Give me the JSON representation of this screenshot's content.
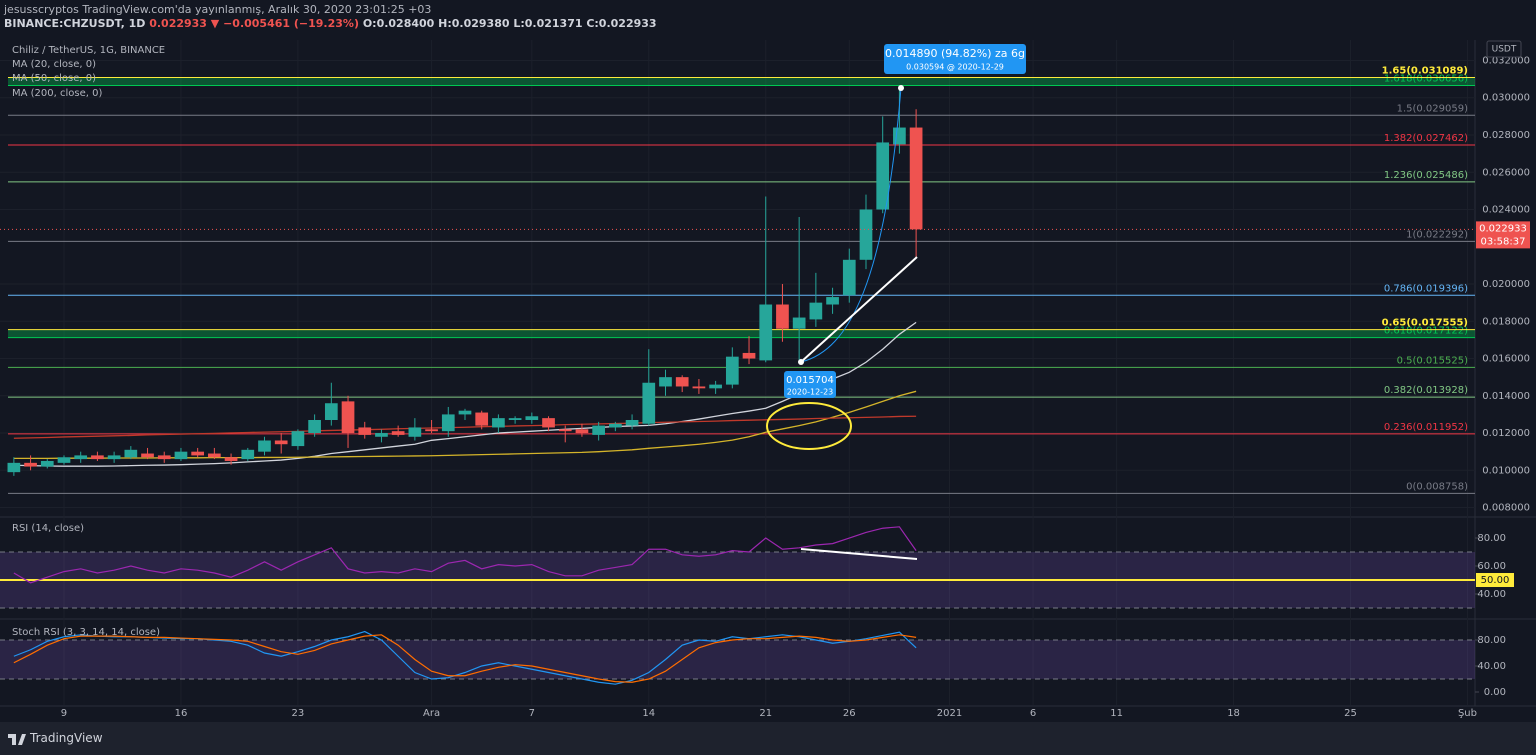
{
  "header": {
    "line1": "jesusscryptos TradingView.com'da yayınlanmış, Aralık 30, 2020 23:01:25 +03",
    "symbol": "BINANCE:CHZUSDT, 1D",
    "change": "0.022933 ▼ −0.005461 (−19.23%)",
    "ohlc": "O:0.028400 H:0.029380 L:0.021371 C:0.022933",
    "currency": "USDT",
    "footer": "TradingView"
  },
  "chart_data": [
    {
      "type": "candlestick",
      "title": "Chiliz / TetherUS, 1G, BINANCE",
      "up_color": "#26a69a",
      "down_color": "#ef5350",
      "open": [
        0.0099,
        0.0104,
        0.0102,
        0.0104,
        0.0106,
        0.0108,
        0.0106,
        0.0107,
        0.0109,
        0.0108,
        0.0106,
        0.011,
        0.0109,
        0.0107,
        0.0106,
        0.011,
        0.0116,
        0.0113,
        0.012,
        0.0127,
        0.0137,
        0.0123,
        0.0118,
        0.0121,
        0.0118,
        0.0122,
        0.0121,
        0.013,
        0.0131,
        0.0123,
        0.0127,
        0.0127,
        0.0128,
        0.0122,
        0.0122,
        0.0119,
        0.0123,
        0.0124,
        0.0125,
        0.0145,
        0.015,
        0.0145,
        0.0144,
        0.0146,
        0.0163,
        0.0159,
        0.0189,
        0.0176,
        0.0181,
        0.0189,
        0.0194,
        0.0213,
        0.024,
        0.0275,
        0.0284
      ],
      "high": [
        0.0107,
        0.0108,
        0.0106,
        0.0108,
        0.011,
        0.011,
        0.011,
        0.0113,
        0.0112,
        0.011,
        0.0112,
        0.0112,
        0.0112,
        0.0109,
        0.0112,
        0.0118,
        0.012,
        0.0122,
        0.013,
        0.0147,
        0.014,
        0.0126,
        0.0122,
        0.0124,
        0.0128,
        0.0127,
        0.0134,
        0.0133,
        0.0132,
        0.013,
        0.0129,
        0.0131,
        0.0129,
        0.0124,
        0.0125,
        0.0126,
        0.0126,
        0.013,
        0.0165,
        0.0154,
        0.0151,
        0.0149,
        0.0148,
        0.0166,
        0.0172,
        0.0247,
        0.02,
        0.0236,
        0.0206,
        0.0198,
        0.0219,
        0.0248,
        0.029,
        0.0306,
        0.02938
      ],
      "low": [
        0.0097,
        0.01,
        0.0101,
        0.0103,
        0.0104,
        0.0105,
        0.0104,
        0.0106,
        0.0106,
        0.0104,
        0.0105,
        0.0107,
        0.0106,
        0.0103,
        0.0105,
        0.0108,
        0.0109,
        0.0111,
        0.0118,
        0.0124,
        0.0112,
        0.0117,
        0.0115,
        0.0118,
        0.0116,
        0.012,
        0.0118,
        0.0127,
        0.0122,
        0.012,
        0.0125,
        0.0125,
        0.0121,
        0.0115,
        0.0118,
        0.0116,
        0.0121,
        0.0122,
        0.0124,
        0.014,
        0.0142,
        0.0141,
        0.0141,
        0.0144,
        0.0157,
        0.0158,
        0.0169,
        0.0159,
        0.0177,
        0.0184,
        0.019,
        0.0208,
        0.0238,
        0.027,
        0.021371
      ],
      "close": [
        0.0104,
        0.0102,
        0.0105,
        0.0107,
        0.0108,
        0.0106,
        0.0108,
        0.0111,
        0.0107,
        0.0106,
        0.011,
        0.0108,
        0.0107,
        0.0105,
        0.0111,
        0.0116,
        0.0114,
        0.0121,
        0.0127,
        0.0136,
        0.012,
        0.0119,
        0.012,
        0.0119,
        0.0123,
        0.0121,
        0.013,
        0.0132,
        0.0124,
        0.0128,
        0.0128,
        0.0129,
        0.0123,
        0.0121,
        0.012,
        0.0124,
        0.0125,
        0.0127,
        0.0147,
        0.015,
        0.0145,
        0.0144,
        0.0146,
        0.0161,
        0.016,
        0.0189,
        0.0176,
        0.0182,
        0.019,
        0.0193,
        0.0213,
        0.024,
        0.0276,
        0.0284,
        0.022933
      ],
      "series": [
        {
          "name": "MA (20, close, 0)",
          "color": "#d1d4dc",
          "values": [
            0.01027,
            0.01025,
            0.01023,
            0.01022,
            0.01022,
            0.01022,
            0.01023,
            0.01025,
            0.01027,
            0.01028,
            0.0103,
            0.01033,
            0.01036,
            0.0104,
            0.01045,
            0.0105,
            0.01055,
            0.01064,
            0.01075,
            0.0109,
            0.011,
            0.0111,
            0.0112,
            0.0113,
            0.0114,
            0.01161,
            0.0117,
            0.0118,
            0.0119,
            0.012,
            0.01205,
            0.0121,
            0.01215,
            0.0122,
            0.01225,
            0.0123,
            0.01235,
            0.01238,
            0.01241,
            0.0125,
            0.01262,
            0.01275,
            0.0129,
            0.01305,
            0.01318,
            0.01333,
            0.0137,
            0.0141,
            0.0145,
            0.0149,
            0.01526,
            0.0158,
            0.0165,
            0.0173,
            0.01794
          ]
        },
        {
          "name": "MA (50, close, 0)",
          "color": "#d4b42a",
          "values": [
            0.01064,
            0.01064,
            0.01064,
            0.01065,
            0.01065,
            0.01065,
            0.01066,
            0.01066,
            0.01066,
            0.01067,
            0.01067,
            0.01067,
            0.01068,
            0.01068,
            0.01068,
            0.01069,
            0.01069,
            0.0107,
            0.01071,
            0.01072,
            0.01073,
            0.01074,
            0.01075,
            0.01076,
            0.01077,
            0.01078,
            0.0108,
            0.01082,
            0.01084,
            0.01086,
            0.01088,
            0.0109,
            0.01092,
            0.01094,
            0.01096,
            0.011,
            0.01105,
            0.0111,
            0.01118,
            0.01125,
            0.01132,
            0.0114,
            0.0115,
            0.01162,
            0.0118,
            0.01204,
            0.01222,
            0.0124,
            0.0126,
            0.01285,
            0.01311,
            0.0134,
            0.0137,
            0.014,
            0.01424
          ]
        },
        {
          "name": "MA (200, close, 0)",
          "color": "#c0392b",
          "values": [
            0.01172,
            0.01174,
            0.01176,
            0.01179,
            0.01181,
            0.01183,
            0.01185,
            0.01187,
            0.0119,
            0.01192,
            0.01194,
            0.01196,
            0.01198,
            0.01201,
            0.01203,
            0.01205,
            0.01207,
            0.01209,
            0.01212,
            0.01214,
            0.01216,
            0.01218,
            0.0122,
            0.01223,
            0.01225,
            0.01227,
            0.01229,
            0.01231,
            0.01234,
            0.01236,
            0.01238,
            0.0124,
            0.01242,
            0.01245,
            0.01247,
            0.01249,
            0.01251,
            0.01253,
            0.01256,
            0.01258,
            0.0126,
            0.01262,
            0.01264,
            0.01267,
            0.01269,
            0.01271,
            0.01273,
            0.01275,
            0.01278,
            0.0128,
            0.01282,
            0.01284,
            0.01286,
            0.01289,
            0.0129
          ]
        }
      ],
      "fib_levels": [
        {
          "value": 0.008758,
          "label": "0(0.008758)",
          "color": "#787b86"
        },
        {
          "value": 0.011952,
          "label": "0.236(0.011952)",
          "color": "#f23645"
        },
        {
          "value": 0.013928,
          "label": "0.382(0.013928)",
          "color": "#81c784"
        },
        {
          "value": 0.015525,
          "label": "0.5(0.015525)",
          "color": "#4caf50"
        },
        {
          "value": 0.017122,
          "label": "0.618(0.017122)",
          "color": "#00c853"
        },
        {
          "value": 0.017555,
          "label": "0.65(0.017555)",
          "color": "#ffeb3b"
        },
        {
          "value": 0.019396,
          "label": "0.786(0.019396)",
          "color": "#64b5f6"
        },
        {
          "value": 0.022292,
          "label": "1(0.022292)",
          "color": "#787b86"
        },
        {
          "value": 0.025486,
          "label": "1.236(0.025486)",
          "color": "#81c784"
        },
        {
          "value": 0.027462,
          "label": "1.382(0.027462)",
          "color": "#f23645"
        },
        {
          "value": 0.029059,
          "label": "1.5(0.029059)",
          "color": "#787b86"
        },
        {
          "value": 0.030656,
          "label": "1.618(0.030656)",
          "color": "#00c853"
        },
        {
          "value": 0.031089,
          "label": "1.65(0.031089)",
          "color": "#ffeb3b"
        }
      ],
      "last_price": 0.022933,
      "countdown": "03:58:37",
      "measure": {
        "label": "0.014890 (94.82%) za 6g",
        "sub": "0.030594 @ 2020-12-29"
      },
      "point": {
        "label": "0.015704",
        "sub": "2020-12-23"
      },
      "ylim": [
        0.0076,
        0.0331
      ],
      "yticks": [
        {
          "value": 0.032,
          "label": "0.032000"
        },
        {
          "value": 0.03,
          "label": "0.030000"
        },
        {
          "value": 0.028,
          "label": "0.028000"
        },
        {
          "value": 0.026,
          "label": "0.026000"
        },
        {
          "value": 0.024,
          "label": "0.024000"
        },
        {
          "value": 0.02,
          "label": "0.020000"
        },
        {
          "value": 0.018,
          "label": "0.018000"
        },
        {
          "value": 0.016,
          "label": "0.016000"
        },
        {
          "value": 0.014,
          "label": "0.014000"
        },
        {
          "value": 0.012,
          "label": "0.012000"
        },
        {
          "value": 0.01,
          "label": "0.010000"
        },
        {
          "value": 0.008,
          "label": "0.008000"
        }
      ],
      "xlim": [
        -0.83,
        87.45
      ],
      "xticks": [
        {
          "value": 3,
          "label": "9"
        },
        {
          "value": 10,
          "label": "16"
        },
        {
          "value": 17,
          "label": "23"
        },
        {
          "value": 25,
          "label": "Ara"
        },
        {
          "value": 31,
          "label": "7"
        },
        {
          "value": 38,
          "label": "14"
        },
        {
          "value": 45,
          "label": "21"
        },
        {
          "value": 50,
          "label": "26"
        },
        {
          "value": 56,
          "label": "2021"
        },
        {
          "value": 61,
          "label": "6"
        },
        {
          "value": 66,
          "label": "11"
        },
        {
          "value": 73,
          "label": "18"
        },
        {
          "value": 80,
          "label": "25"
        },
        {
          "value": 87,
          "label": "Şub"
        }
      ]
    },
    {
      "type": "line",
      "title": "RSI (14, close)",
      "series": [
        {
          "color": "#9c27b0",
          "values": [
            55,
            48,
            52,
            56,
            58,
            55,
            57,
            60,
            57,
            55,
            58,
            57,
            55,
            52,
            57,
            63,
            57,
            63,
            68,
            73,
            58,
            55,
            56,
            55,
            58,
            56,
            62,
            64,
            58,
            61,
            60,
            61,
            56,
            53,
            53,
            57,
            59,
            61,
            72,
            72,
            68,
            67,
            68,
            71,
            70,
            80,
            72,
            73,
            75,
            76,
            80,
            84,
            87,
            88,
            71
          ]
        }
      ],
      "ylim": [
        25,
        94.3
      ],
      "yticks": [
        {
          "value": 80,
          "label": "80.00"
        },
        {
          "value": 60,
          "label": "60.00"
        },
        {
          "value": 40,
          "label": "40.00"
        }
      ],
      "bands": [
        70,
        30
      ],
      "band_fill": "#7e57c2",
      "highlight": {
        "value": 50,
        "label": "50.00",
        "color": "#ffeb3b"
      }
    },
    {
      "type": "line",
      "title": "Stoch RSI (3, 3, 14, 14, close)",
      "series": [
        {
          "color": "#2196f3",
          "values": [
            55,
            65,
            78,
            85,
            88,
            86,
            85,
            85,
            84,
            83,
            82,
            82,
            80,
            78,
            72,
            60,
            55,
            62,
            70,
            80,
            85,
            93,
            80,
            55,
            30,
            20,
            22,
            30,
            40,
            45,
            40,
            35,
            30,
            25,
            20,
            15,
            12,
            18,
            30,
            50,
            72,
            80,
            78,
            85,
            82,
            85,
            88,
            85,
            80,
            75,
            78,
            82,
            87,
            92,
            68
          ]
        },
        {
          "color": "#ff6d00",
          "values": [
            45,
            58,
            72,
            82,
            86,
            86,
            86,
            85,
            84,
            84,
            83,
            82,
            81,
            80,
            78,
            70,
            62,
            58,
            64,
            74,
            80,
            86,
            88,
            72,
            50,
            32,
            25,
            25,
            32,
            38,
            42,
            40,
            35,
            30,
            25,
            20,
            16,
            15,
            20,
            32,
            50,
            68,
            76,
            80,
            82,
            82,
            84,
            86,
            84,
            80,
            78,
            80,
            84,
            88,
            84
          ]
        }
      ],
      "ylim": [
        -20,
        107.7
      ],
      "yticks": [
        {
          "value": 80,
          "label": "80.00"
        },
        {
          "value": 40,
          "label": "40.00"
        },
        {
          "value": 0,
          "label": "0.00"
        }
      ],
      "bands": [
        80,
        20
      ],
      "band_fill": "#7e57c2"
    }
  ]
}
